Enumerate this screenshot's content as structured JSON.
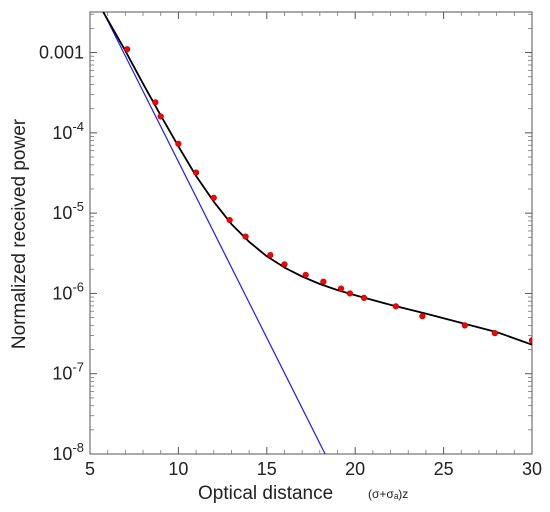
{
  "chart_data": {
    "type": "scatter",
    "xlabel": "Optical distance",
    "xlabel_suffix": "(σ+σₐ)z",
    "ylabel": "Normalized received power",
    "x_scale": "linear",
    "y_scale": "log",
    "xlim": [
      5,
      30
    ],
    "ylim": [
      1e-08,
      0.0032
    ],
    "grid": false,
    "x_ticks": [
      {
        "value": 5,
        "label": "5"
      },
      {
        "value": 10,
        "label": "10"
      },
      {
        "value": 15,
        "label": "15"
      },
      {
        "value": 20,
        "label": "20"
      },
      {
        "value": 25,
        "label": "25"
      },
      {
        "value": 30,
        "label": "30"
      }
    ],
    "y_ticks": [
      {
        "value": 0.001,
        "base": "0.001",
        "exp": ""
      },
      {
        "value": 0.0001,
        "base": "10",
        "exp": "-4"
      },
      {
        "value": 1e-05,
        "base": "10",
        "exp": "-5"
      },
      {
        "value": 1e-06,
        "base": "10",
        "exp": "-6"
      },
      {
        "value": 1e-07,
        "base": "10",
        "exp": "-7"
      },
      {
        "value": 1e-08,
        "base": "10",
        "exp": "-8"
      }
    ],
    "series": [
      {
        "kind": "line",
        "color": "#1a1aff",
        "x": [
          5.75,
          18.3
        ],
        "y": [
          0.0032,
          1e-08
        ]
      },
      {
        "kind": "line",
        "color": "#000000",
        "x": [
          5.75,
          7,
          8,
          9,
          10,
          11,
          12,
          13,
          14,
          15,
          16,
          17,
          18,
          19,
          20,
          22,
          24,
          26,
          28,
          30
        ],
        "y": [
          0.0032,
          0.00105,
          0.00041,
          0.000165,
          6.8e-05,
          2.9e-05,
          1.39e-05,
          7.3e-06,
          4.4e-06,
          2.9e-06,
          2.1e-06,
          1.62e-06,
          1.31e-06,
          1.1e-06,
          9.5e-07,
          7.2e-07,
          5.6e-07,
          4.3e-07,
          3.3e-07,
          2.3e-07
        ]
      },
      {
        "kind": "points",
        "color": "#ff0000",
        "x": [
          7.1,
          8.7,
          9.0,
          10.0,
          11.0,
          12.0,
          12.9,
          13.8,
          15.2,
          16.0,
          17.2,
          18.2,
          19.2,
          19.7,
          20.5,
          22.3,
          23.8,
          26.2,
          27.9,
          30.0
        ],
        "y": [
          0.0011,
          0.00024,
          0.00016,
          7.3e-05,
          3.2e-05,
          1.55e-05,
          8.2e-06,
          5.1e-06,
          3e-06,
          2.3e-06,
          1.7e-06,
          1.4e-06,
          1.15e-06,
          1e-06,
          8.8e-07,
          6.9e-07,
          5.2e-07,
          4e-07,
          3.2e-07,
          2.6e-07
        ]
      }
    ]
  }
}
